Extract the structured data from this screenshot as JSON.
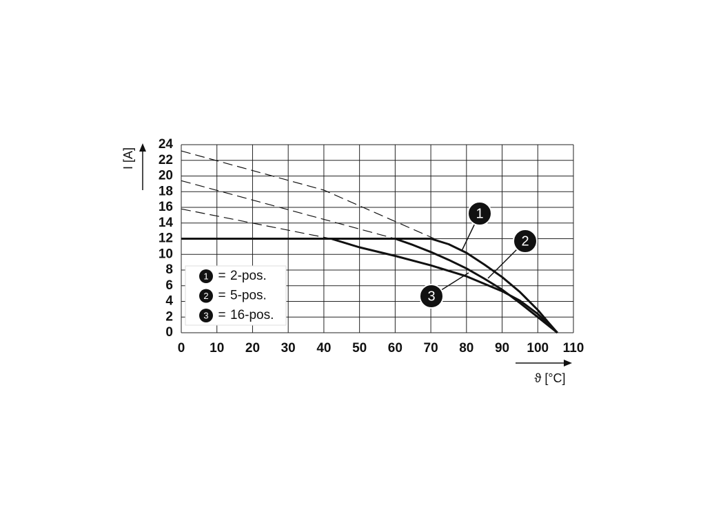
{
  "chart_data": {
    "type": "line",
    "y_label": "I [A]",
    "x_label": "ϑ [°C]",
    "xlim": [
      0,
      110
    ],
    "xticks": [
      0,
      10,
      20,
      30,
      40,
      50,
      60,
      70,
      80,
      90,
      100,
      110
    ],
    "ylim": [
      0,
      24
    ],
    "yticks": [
      0,
      2,
      4,
      6,
      8,
      10,
      12,
      14,
      16,
      18,
      20,
      22,
      24
    ],
    "grid": true,
    "legend_position": "lower left",
    "legend_separator": "=",
    "series": [
      {
        "label": "1",
        "name": "2-pos.",
        "color": "#111111",
        "x": [
          0,
          70,
          75,
          80,
          85,
          90,
          95,
          100,
          103,
          105.5
        ],
        "values": [
          12,
          12,
          11.3,
          10.2,
          8.7,
          7.1,
          5.2,
          2.9,
          1.3,
          0
        ]
      },
      {
        "label": "2",
        "name": "5-pos.",
        "color": "#111111",
        "x": [
          0,
          60,
          65,
          70,
          75,
          80,
          85,
          90,
          95,
          100,
          105.5
        ],
        "values": [
          12,
          12,
          11.2,
          10.3,
          9.3,
          8.2,
          6.9,
          5.5,
          3.8,
          2,
          0
        ]
      },
      {
        "label": "3",
        "name": "16-pos.",
        "color": "#111111",
        "x": [
          0,
          42,
          50,
          60,
          70,
          80,
          90,
          95,
          100,
          105.5
        ],
        "values": [
          12,
          12,
          10.9,
          9.8,
          8.6,
          7.2,
          5.3,
          4.1,
          2.4,
          0
        ]
      }
    ],
    "extrapolation": [
      {
        "x": [
          0,
          40,
          71
        ],
        "values": [
          23.2,
          18.2,
          12
        ]
      },
      {
        "x": [
          0,
          60
        ],
        "values": [
          19.4,
          12
        ]
      },
      {
        "x": [
          0,
          42
        ],
        "values": [
          15.8,
          12
        ]
      }
    ]
  }
}
